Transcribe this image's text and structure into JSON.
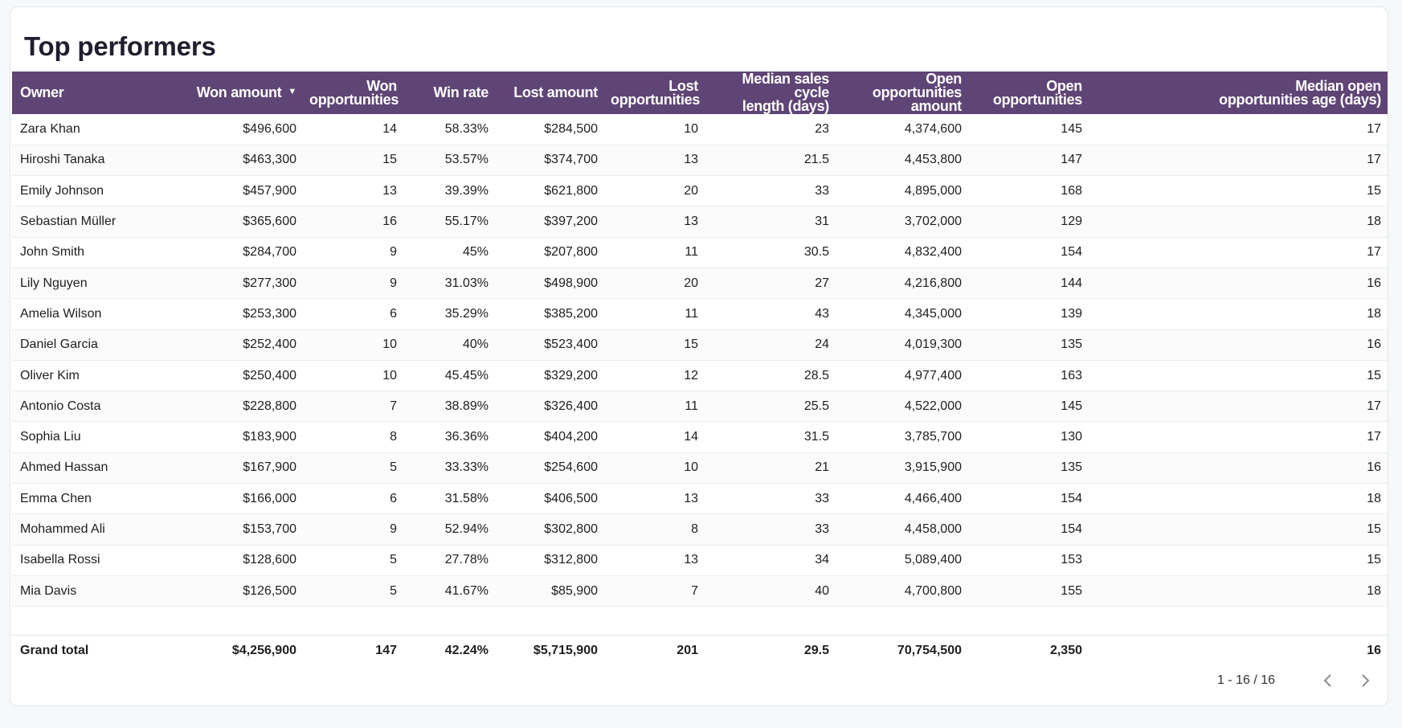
{
  "title": "Top performers",
  "columns": [
    {
      "l1": "Owner",
      "l2": ""
    },
    {
      "l1": "Won amount",
      "l2": ""
    },
    {
      "l1": "Won",
      "l2": "opportunities"
    },
    {
      "l1": "Win rate",
      "l2": ""
    },
    {
      "l1": "Lost amount",
      "l2": ""
    },
    {
      "l1": "Lost",
      "l2": "opportunities"
    },
    {
      "l1": "Median sales cycle",
      "l2": "length (days)"
    },
    {
      "l1": "Open opportunities",
      "l2": "amount"
    },
    {
      "l1": "Open",
      "l2": "opportunities"
    },
    {
      "l1": "Median open",
      "l2": "opportunities age (days)"
    }
  ],
  "sort": {
    "column": "Won amount",
    "direction": "descending",
    "icon": "caret-down-icon"
  },
  "rows": [
    [
      "Zara Khan",
      "$496,600",
      "14",
      "58.33%",
      "$284,500",
      "10",
      "23",
      "4,374,600",
      "145",
      "17"
    ],
    [
      "Hiroshi Tanaka",
      "$463,300",
      "15",
      "53.57%",
      "$374,700",
      "13",
      "21.5",
      "4,453,800",
      "147",
      "17"
    ],
    [
      "Emily Johnson",
      "$457,900",
      "13",
      "39.39%",
      "$621,800",
      "20",
      "33",
      "4,895,000",
      "168",
      "15"
    ],
    [
      "Sebastian Müller",
      "$365,600",
      "16",
      "55.17%",
      "$397,200",
      "13",
      "31",
      "3,702,000",
      "129",
      "18"
    ],
    [
      "John Smith",
      "$284,700",
      "9",
      "45%",
      "$207,800",
      "11",
      "30.5",
      "4,832,400",
      "154",
      "17"
    ],
    [
      "Lily Nguyen",
      "$277,300",
      "9",
      "31.03%",
      "$498,900",
      "20",
      "27",
      "4,216,800",
      "144",
      "16"
    ],
    [
      "Amelia Wilson",
      "$253,300",
      "6",
      "35.29%",
      "$385,200",
      "11",
      "43",
      "4,345,000",
      "139",
      "18"
    ],
    [
      "Daniel Garcia",
      "$252,400",
      "10",
      "40%",
      "$523,400",
      "15",
      "24",
      "4,019,300",
      "135",
      "16"
    ],
    [
      "Oliver Kim",
      "$250,400",
      "10",
      "45.45%",
      "$329,200",
      "12",
      "28.5",
      "4,977,400",
      "163",
      "15"
    ],
    [
      "Antonio Costa",
      "$228,800",
      "7",
      "38.89%",
      "$326,400",
      "11",
      "25.5",
      "4,522,000",
      "145",
      "17"
    ],
    [
      "Sophia Liu",
      "$183,900",
      "8",
      "36.36%",
      "$404,200",
      "14",
      "31.5",
      "3,785,700",
      "130",
      "17"
    ],
    [
      "Ahmed Hassan",
      "$167,900",
      "5",
      "33.33%",
      "$254,600",
      "10",
      "21",
      "3,915,900",
      "135",
      "16"
    ],
    [
      "Emma Chen",
      "$166,000",
      "6",
      "31.58%",
      "$406,500",
      "13",
      "33",
      "4,466,400",
      "154",
      "18"
    ],
    [
      "Mohammed Ali",
      "$153,700",
      "9",
      "52.94%",
      "$302,800",
      "8",
      "33",
      "4,458,000",
      "154",
      "15"
    ],
    [
      "Isabella Rossi",
      "$128,600",
      "5",
      "27.78%",
      "$312,800",
      "13",
      "34",
      "5,089,400",
      "153",
      "15"
    ],
    [
      "Mia Davis",
      "$126,500",
      "5",
      "41.67%",
      "$85,900",
      "7",
      "40",
      "4,700,800",
      "155",
      "18"
    ]
  ],
  "total": [
    "Grand total",
    "$4,256,900",
    "147",
    "42.24%",
    "$5,715,900",
    "201",
    "29.5",
    "70,754,500",
    "2,350",
    "16"
  ],
  "pager": {
    "range": "1 - 16 / 16",
    "prev_icon": "chevron-left-icon",
    "next_icon": "chevron-right-icon"
  },
  "colors": {
    "header_bg": "#5f4575",
    "header_text": "#ffffff"
  }
}
